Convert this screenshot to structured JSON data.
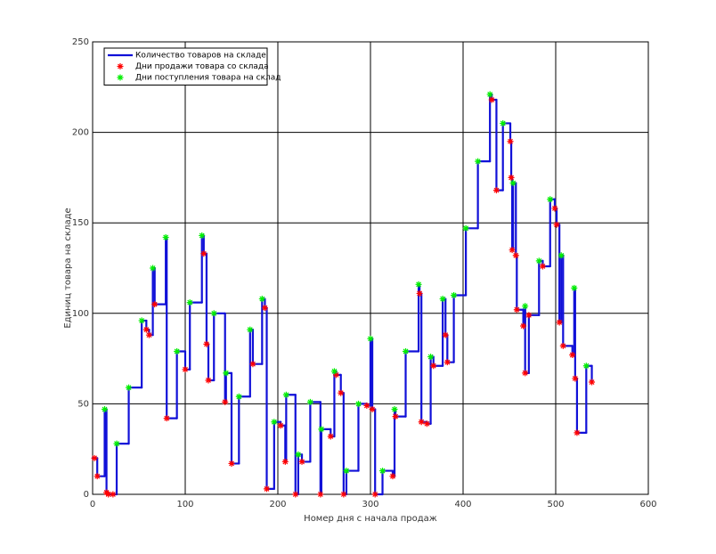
{
  "chart_data": {
    "type": "line",
    "xlabel": "Номер дня с начала продаж",
    "ylabel": "Единиц товара на складе",
    "xlim": [
      0,
      600
    ],
    "xticks": [
      0,
      100,
      200,
      300,
      400,
      500,
      600
    ],
    "ylim": [
      0,
      250
    ],
    "yticks": [
      0,
      50,
      100,
      150,
      200,
      250
    ],
    "grid": true,
    "legend": "upper-left",
    "series": [
      {
        "name": "Количество товаров на складе",
        "color": "#1010d8",
        "style": "step",
        "x": [
          0,
          2,
          5,
          13,
          15,
          17,
          22,
          26,
          39,
          53,
          58,
          61,
          65,
          67,
          79,
          80,
          91,
          100,
          105,
          118,
          120,
          123,
          125,
          131,
          143,
          144,
          150,
          158,
          170,
          173,
          183,
          186,
          188,
          196,
          203,
          208,
          209,
          219,
          222,
          226,
          235,
          246,
          247,
          257,
          261,
          263,
          268,
          271,
          274,
          287,
          296,
          300,
          302,
          305,
          313,
          324,
          326,
          327,
          338,
          352,
          353,
          355,
          361,
          365,
          368,
          378,
          381,
          383,
          390,
          403,
          416,
          429,
          431,
          436,
          443,
          451,
          452,
          453,
          454,
          457,
          458,
          465,
          467,
          467,
          471,
          482,
          486,
          494,
          499,
          501,
          504,
          506,
          508,
          518,
          520,
          521,
          523,
          533,
          539
        ],
        "values": [
          20,
          20,
          10,
          47,
          1,
          0,
          0,
          28,
          59,
          96,
          91,
          88,
          125,
          105,
          142,
          42,
          79,
          69,
          106,
          143,
          133,
          83,
          63,
          100,
          51,
          67,
          17,
          54,
          91,
          72,
          108,
          103,
          3,
          40,
          38,
          18,
          55,
          0,
          22,
          18,
          51,
          0,
          36,
          32,
          68,
          66,
          56,
          0,
          13,
          50,
          49,
          86,
          47,
          0,
          13,
          10,
          47,
          43,
          79,
          116,
          111,
          40,
          39,
          76,
          71,
          108,
          88,
          73,
          110,
          147,
          184,
          221,
          218,
          168,
          205,
          195,
          175,
          135,
          172,
          132,
          102,
          93,
          104,
          67,
          99,
          129,
          126,
          163,
          158,
          149,
          95,
          132,
          82,
          77,
          114,
          64,
          34,
          71,
          62
        ]
      },
      {
        "name": "Дни продажи товара со склада",
        "color": "#ff0000",
        "style": "marker",
        "x": [
          2,
          5,
          15,
          17,
          22,
          58,
          61,
          67,
          80,
          100,
          120,
          123,
          125,
          143,
          150,
          173,
          186,
          188,
          203,
          208,
          219,
          226,
          246,
          257,
          263,
          268,
          271,
          296,
          302,
          305,
          324,
          327,
          353,
          355,
          361,
          368,
          381,
          383,
          431,
          436,
          451,
          452,
          453,
          457,
          458,
          465,
          467,
          471,
          486,
          499,
          501,
          504,
          508,
          518,
          521,
          523,
          539
        ],
        "values": [
          20,
          10,
          1,
          0,
          0,
          91,
          88,
          105,
          42,
          69,
          133,
          83,
          63,
          51,
          17,
          72,
          103,
          3,
          38,
          18,
          0,
          18,
          0,
          32,
          66,
          56,
          0,
          49,
          47,
          0,
          10,
          43,
          111,
          40,
          39,
          71,
          88,
          73,
          218,
          168,
          195,
          175,
          135,
          132,
          102,
          93,
          67,
          99,
          126,
          158,
          149,
          95,
          82,
          77,
          64,
          34,
          62
        ]
      },
      {
        "name": "Дни поступления товара на склад",
        "color": "#00ee00",
        "style": "marker",
        "x": [
          13,
          26,
          39,
          53,
          65,
          79,
          91,
          105,
          118,
          131,
          144,
          158,
          170,
          183,
          196,
          209,
          222,
          235,
          247,
          261,
          274,
          287,
          300,
          313,
          326,
          338,
          352,
          365,
          378,
          390,
          403,
          416,
          429,
          443,
          454,
          467,
          482,
          494,
          506,
          520,
          533
        ],
        "values": [
          47,
          28,
          59,
          96,
          125,
          142,
          79,
          106,
          143,
          100,
          67,
          54,
          91,
          108,
          40,
          55,
          22,
          51,
          36,
          68,
          13,
          50,
          86,
          13,
          47,
          79,
          116,
          76,
          108,
          110,
          147,
          184,
          221,
          205,
          172,
          104,
          129,
          163,
          132,
          114,
          71
        ]
      }
    ]
  }
}
